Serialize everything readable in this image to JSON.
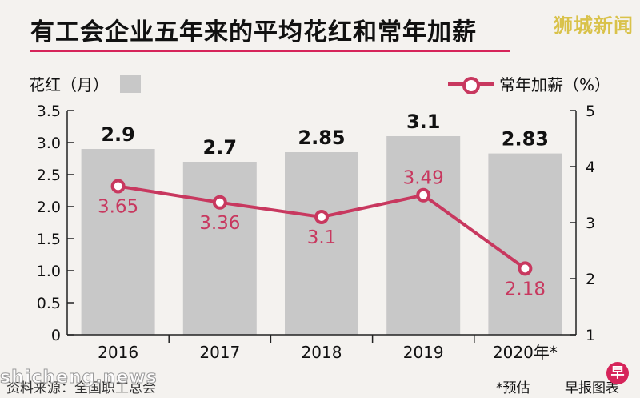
{
  "watermark": "狮城新闻",
  "source_watermark": "shicheng.news",
  "title": "有工会企业五年来的平均花红和常年加薪",
  "left_legend": "花红（月）",
  "right_legend": "常年加薪（%）",
  "source": "资料来源：全国职工总会",
  "footnote": "*预估",
  "credit": "早报图表",
  "credit_logo": "早",
  "chart_data": {
    "type": "bar+line",
    "categories": [
      "2016",
      "2017",
      "2018",
      "2019",
      "2020年*"
    ],
    "bar_series": {
      "name": "花红（月）",
      "values": [
        2.9,
        2.7,
        2.85,
        3.1,
        2.83
      ],
      "labels": [
        "2.9",
        "2.7",
        "2.85",
        "3.1",
        "2.83"
      ],
      "color": "#c8c8c8"
    },
    "line_series": {
      "name": "常年加薪（%）",
      "values": [
        3.65,
        3.36,
        3.1,
        3.49,
        2.18
      ],
      "labels": [
        "3.65",
        "3.36",
        "3.1",
        "3.49",
        "2.18"
      ],
      "color": "#c8385f"
    },
    "left_axis": {
      "ylim": [
        0,
        3.5
      ],
      "ticks": [
        "0",
        "0.5",
        "1.0",
        "1.5",
        "2.0",
        "2.5",
        "3.0",
        "3.5"
      ]
    },
    "right_axis": {
      "ylim": [
        1,
        5
      ],
      "ticks": [
        "1",
        "2",
        "3",
        "4",
        "5"
      ]
    },
    "grid": false
  }
}
